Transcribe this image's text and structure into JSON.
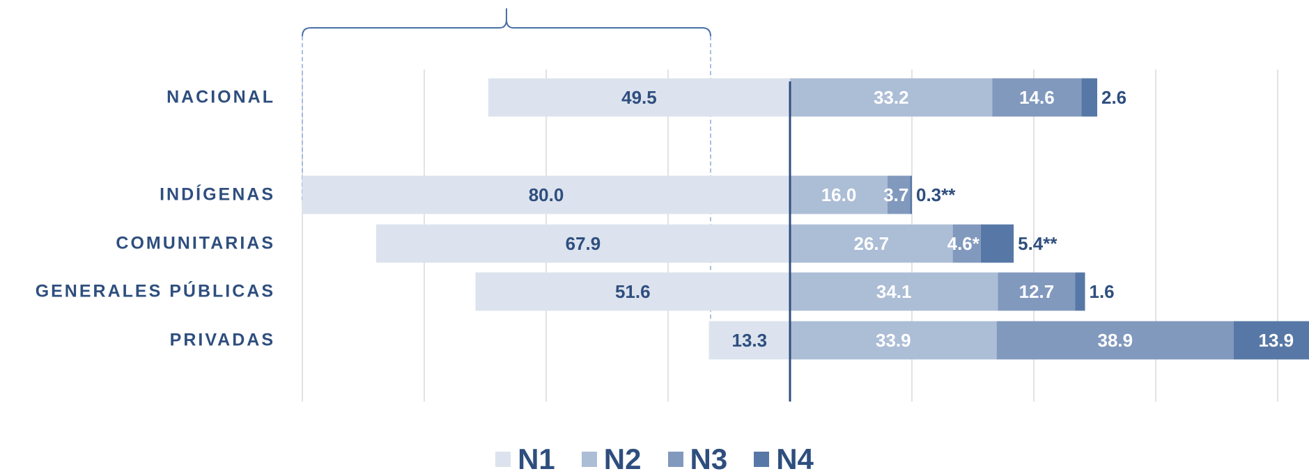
{
  "chart_data": {
    "type": "bar",
    "orientation": "horizontal",
    "diverging": true,
    "categories": [
      "NACIONAL",
      "INDÍGENAS",
      "COMUNITARIAS",
      "GENERALES PÚBLICAS",
      "PRIVADAS"
    ],
    "series": [
      {
        "name": "N1",
        "color": "#dce3ee",
        "values": [
          49.5,
          80.0,
          67.9,
          51.6,
          13.3
        ],
        "labels": [
          "49.5",
          "80.0",
          "67.9",
          "51.6",
          "13.3"
        ]
      },
      {
        "name": "N2",
        "color": "#acbdd6",
        "values": [
          33.2,
          16.0,
          26.7,
          34.1,
          33.9
        ],
        "labels": [
          "33.2",
          "16.0",
          "26.7",
          "34.1",
          "33.9"
        ]
      },
      {
        "name": "N3",
        "color": "#8299be",
        "values": [
          14.6,
          3.7,
          4.6,
          12.7,
          38.9
        ],
        "labels": [
          "14.6",
          "3.7",
          "4.6*",
          "12.7",
          "38.9"
        ]
      },
      {
        "name": "N4",
        "color": "#5778a6",
        "values": [
          2.6,
          0.3,
          5.4,
          1.6,
          13.9
        ],
        "labels": [
          "2.6",
          "0.3**",
          "5.4**",
          "1.6",
          "13.9"
        ]
      }
    ],
    "xlim": [
      -80,
      80
    ],
    "grid": true,
    "legend": "bottom"
  },
  "legend": {
    "items": [
      "N1",
      "N2",
      "N3",
      "N4"
    ]
  },
  "colors": {
    "label_dark": "#2e4e7e",
    "label_light": "#ffffff",
    "axis": "#2e4e7e",
    "bracket": "#4a6ea8"
  }
}
